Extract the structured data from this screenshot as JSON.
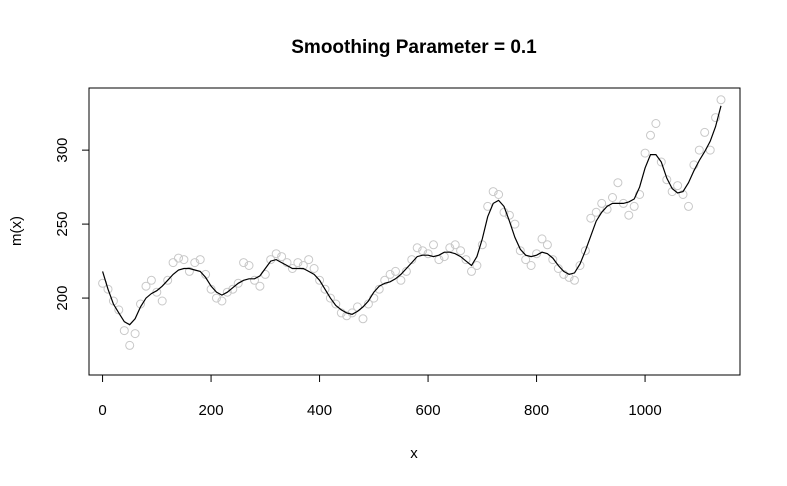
{
  "chart_data": {
    "type": "scatter",
    "title": "Smoothing Parameter = 0.1",
    "xlabel": "x",
    "ylabel": "m(x)",
    "xlim": [
      -25,
      1175
    ],
    "ylim": [
      148,
      342
    ],
    "x_ticks": [
      0,
      200,
      400,
      600,
      800,
      1000
    ],
    "y_ticks": [
      200,
      250,
      300
    ],
    "x_tick_labels": [
      "0",
      "200",
      "400",
      "600",
      "800",
      "1000"
    ],
    "y_tick_labels": [
      "200",
      "250",
      "300"
    ],
    "grid": false,
    "legend": "none",
    "colors": {
      "points": "#c8c8c8",
      "line": "#000000",
      "frame": "#000000"
    },
    "series": [
      {
        "kind": "points",
        "x": [
          0,
          10,
          20,
          30,
          40,
          50,
          60,
          70,
          80,
          90,
          100,
          110,
          120,
          130,
          140,
          150,
          160,
          170,
          180,
          190,
          200,
          210,
          220,
          230,
          240,
          250,
          260,
          270,
          280,
          290,
          300,
          310,
          320,
          330,
          340,
          350,
          360,
          370,
          380,
          390,
          400,
          410,
          420,
          430,
          440,
          450,
          460,
          470,
          480,
          490,
          500,
          510,
          520,
          530,
          540,
          550,
          560,
          570,
          580,
          590,
          600,
          610,
          620,
          630,
          640,
          650,
          660,
          670,
          680,
          690,
          700,
          710,
          720,
          730,
          740,
          750,
          760,
          770,
          780,
          790,
          800,
          810,
          820,
          830,
          840,
          850,
          860,
          870,
          880,
          890,
          900,
          910,
          920,
          930,
          940,
          950,
          960,
          970,
          980,
          990,
          1000,
          1010,
          1020,
          1030,
          1040,
          1050,
          1060,
          1070,
          1080,
          1090,
          1100,
          1110,
          1120,
          1130,
          1140
        ],
        "y": [
          210,
          206,
          198,
          192,
          178,
          168,
          176,
          196,
          208,
          212,
          204,
          198,
          212,
          224,
          227,
          226,
          218,
          224,
          226,
          216,
          206,
          200,
          198,
          204,
          206,
          210,
          224,
          222,
          212,
          208,
          216,
          226,
          230,
          228,
          224,
          220,
          224,
          222,
          226,
          220,
          212,
          206,
          200,
          196,
          190,
          188,
          190,
          194,
          186,
          196,
          200,
          206,
          212,
          216,
          218,
          212,
          218,
          226,
          234,
          232,
          230,
          236,
          226,
          228,
          234,
          236,
          232,
          226,
          218,
          222,
          236,
          262,
          272,
          270,
          258,
          256,
          250,
          232,
          226,
          222,
          230,
          240,
          236,
          226,
          220,
          216,
          214,
          212,
          222,
          232,
          254,
          258,
          264,
          260,
          268,
          278,
          264,
          256,
          262,
          270,
          298,
          310,
          318,
          292,
          280,
          272,
          276,
          270,
          262,
          290,
          300,
          312,
          300,
          322,
          334
        ]
      },
      {
        "kind": "line",
        "x": [
          0,
          10,
          20,
          30,
          40,
          50,
          60,
          70,
          80,
          90,
          100,
          110,
          120,
          130,
          140,
          150,
          160,
          170,
          180,
          190,
          200,
          210,
          220,
          230,
          240,
          250,
          260,
          270,
          280,
          290,
          300,
          310,
          320,
          330,
          340,
          350,
          360,
          370,
          380,
          390,
          400,
          410,
          420,
          430,
          440,
          450,
          460,
          470,
          480,
          490,
          500,
          510,
          520,
          530,
          540,
          550,
          560,
          570,
          580,
          590,
          600,
          610,
          620,
          630,
          640,
          650,
          660,
          670,
          680,
          690,
          700,
          710,
          720,
          730,
          740,
          750,
          760,
          770,
          780,
          790,
          800,
          810,
          820,
          830,
          840,
          850,
          860,
          870,
          880,
          890,
          900,
          910,
          920,
          930,
          940,
          950,
          960,
          970,
          980,
          990,
          1000,
          1010,
          1020,
          1030,
          1040,
          1050,
          1060,
          1070,
          1080,
          1090,
          1100,
          1110,
          1120,
          1130,
          1140
        ],
        "y": [
          218,
          206,
          196,
          190,
          184,
          182,
          186,
          194,
          200,
          203,
          205,
          208,
          212,
          216,
          219,
          220,
          220,
          219,
          218,
          214,
          208,
          204,
          202,
          204,
          207,
          210,
          212,
          213,
          213,
          215,
          220,
          225,
          226,
          224,
          222,
          220,
          220,
          220,
          218,
          216,
          212,
          206,
          200,
          195,
          192,
          190,
          189,
          191,
          194,
          198,
          204,
          208,
          210,
          211,
          213,
          216,
          220,
          224,
          228,
          229,
          229,
          228,
          229,
          231,
          231,
          230,
          228,
          225,
          222,
          228,
          240,
          255,
          264,
          266,
          262,
          252,
          241,
          233,
          229,
          228,
          229,
          231,
          230,
          227,
          222,
          218,
          216,
          217,
          223,
          232,
          242,
          252,
          258,
          262,
          264,
          264,
          264,
          265,
          267,
          275,
          288,
          297,
          297,
          292,
          281,
          274,
          271,
          272,
          278,
          286,
          293,
          299,
          306,
          316,
          330
        ]
      }
    ]
  }
}
